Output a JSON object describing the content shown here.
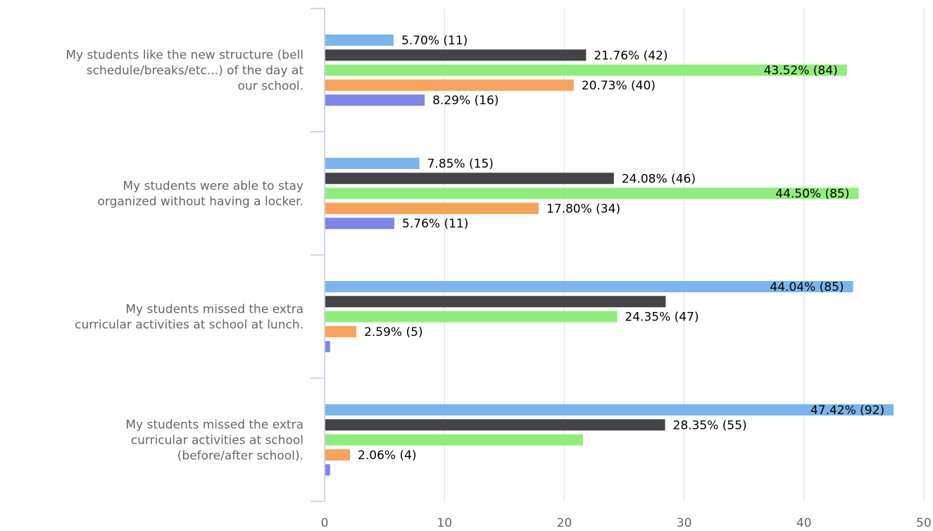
{
  "chart_data": {
    "type": "bar",
    "orientation": "horizontal",
    "title": "",
    "xlabel": "",
    "ylabel": "",
    "xlim": [
      0,
      50
    ],
    "x_ticks": [
      "0",
      "10",
      "20",
      "30",
      "40",
      "50"
    ],
    "grid": true,
    "legend": "none",
    "categories": [
      "My students like the new structure (bell schedule/breaks/etc...) of the day at our school.",
      "My students were able to stay organized without having a locker.",
      "My students missed the extra curricular activities at school at lunch.",
      "My students missed the extra curricular activities at school (before/after school)."
    ],
    "category_lines": [
      [
        "My students like the new structure (bell",
        "schedule/breaks/etc...) of the day at",
        "our school."
      ],
      [
        "My students were able to stay",
        "organized without having a locker."
      ],
      [
        "My students missed the extra",
        "curricular activities at school at lunch."
      ],
      [
        "My students missed the extra",
        "curricular activities at school",
        "(before/after school)."
      ]
    ],
    "series": [
      {
        "color": "#7cb5ec",
        "values": [
          5.7,
          7.85,
          44.04,
          47.42
        ],
        "labels": [
          "5.70% (11)",
          "7.85% (15)",
          "44.04% (85)",
          "47.42% (92)"
        ]
      },
      {
        "color": "#434348",
        "values": [
          21.76,
          24.08,
          28.4,
          28.35
        ],
        "labels": [
          "21.76% (42)",
          "24.08% (46)",
          "",
          "28.35% (55)"
        ]
      },
      {
        "color": "#90ed7d",
        "values": [
          43.52,
          44.5,
          24.35,
          21.5
        ],
        "labels": [
          "43.52% (84)",
          "44.50% (85)",
          "24.35% (47)",
          ""
        ]
      },
      {
        "color": "#f7a35c",
        "values": [
          20.73,
          17.8,
          2.59,
          2.06
        ],
        "labels": [
          "20.73% (40)",
          "17.80% (34)",
          "2.59% (5)",
          "2.06% (4)"
        ]
      },
      {
        "color": "#8085e9",
        "values": [
          8.29,
          5.76,
          0.4,
          0.4
        ],
        "labels": [
          "8.29% (16)",
          "5.76% (11)",
          "",
          ""
        ]
      }
    ]
  }
}
